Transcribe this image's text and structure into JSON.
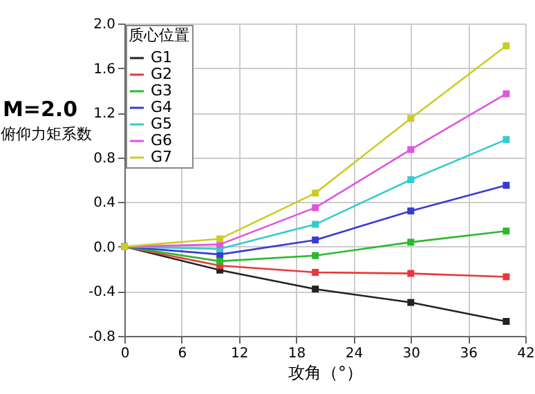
{
  "chart_data": {
    "type": "line",
    "title": "M=2.0",
    "xlabel": "攻角（°）",
    "ylabel": "俯仰力矩系数",
    "legend_title": "质心位置",
    "x": [
      0,
      10,
      20,
      30,
      40
    ],
    "series": [
      {
        "name": "G1",
        "color": "#222222",
        "values": [
          0,
          -0.21,
          -0.38,
          -0.5,
          -0.67
        ]
      },
      {
        "name": "G2",
        "color": "#e8383d",
        "values": [
          0,
          -0.17,
          -0.23,
          -0.24,
          -0.27
        ]
      },
      {
        "name": "G3",
        "color": "#2db82d",
        "values": [
          0,
          -0.13,
          -0.08,
          0.04,
          0.14
        ]
      },
      {
        "name": "G4",
        "color": "#3a3ad0",
        "values": [
          0,
          -0.07,
          0.06,
          0.32,
          0.55
        ]
      },
      {
        "name": "G5",
        "color": "#33cccc",
        "values": [
          0,
          -0.02,
          0.2,
          0.6,
          0.96
        ]
      },
      {
        "name": "G6",
        "color": "#e055e0",
        "values": [
          0,
          0.02,
          0.35,
          0.87,
          1.37
        ]
      },
      {
        "name": "G7",
        "color": "#cccc22",
        "values": [
          0,
          0.07,
          0.48,
          1.15,
          1.8
        ]
      }
    ],
    "xlim": [
      0,
      42
    ],
    "xticks": [
      0,
      6,
      12,
      18,
      24,
      30,
      36,
      42
    ],
    "ylim": [
      -0.8,
      2.0
    ],
    "yticks": [
      -0.8,
      -0.4,
      {
        "value": 0,
        "label": "0.0"
      },
      0.4,
      0.8,
      1.2,
      1.6,
      {
        "value": 2,
        "label": "2.0"
      }
    ],
    "grid": true,
    "legend": "top left",
    "marker": "square",
    "line_style": "solid"
  }
}
